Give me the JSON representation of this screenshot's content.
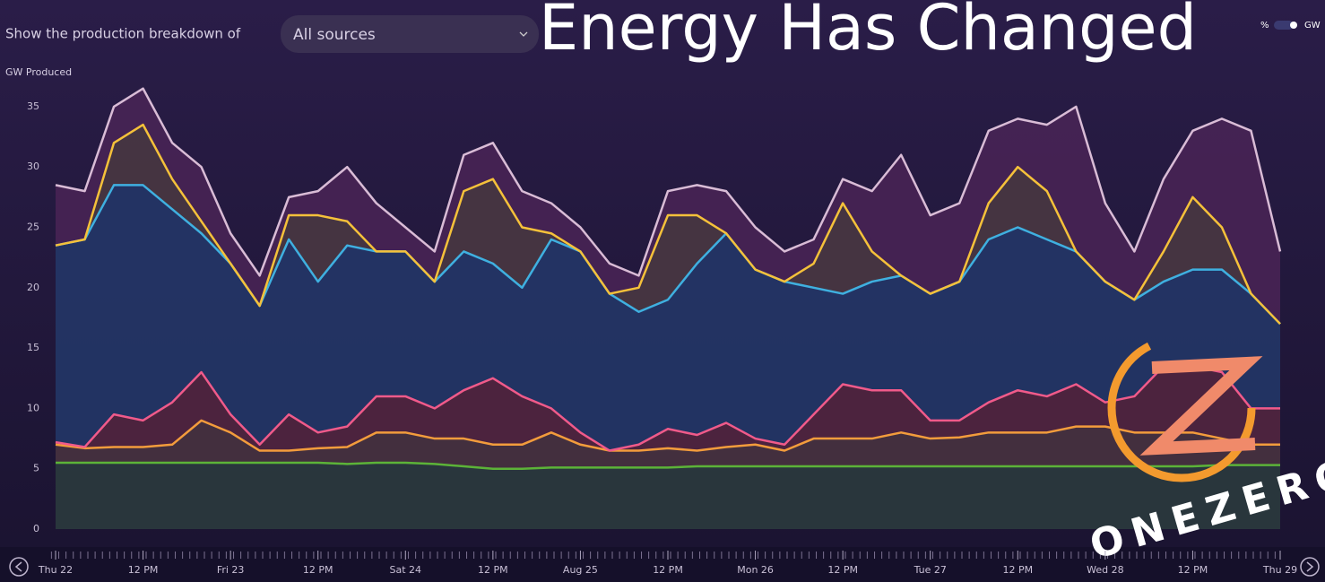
{
  "header": {
    "prompt": "Show the production breakdown of",
    "dropdown": "All sources",
    "headline": "Energy Has Changed",
    "unit_percent": "%",
    "unit_gw": "GW"
  },
  "logo": "ONEZERO",
  "chart_data": {
    "type": "stacked-area",
    "y_label": "GW Produced",
    "x": [
      0,
      4,
      8,
      12,
      16,
      20,
      24,
      28,
      32,
      36,
      40,
      44,
      48,
      52,
      56,
      60,
      64,
      68,
      72,
      76,
      80,
      84,
      88,
      92,
      96,
      100,
      104,
      108,
      112,
      116,
      120,
      124,
      128,
      132,
      136,
      140,
      144,
      148,
      152,
      156,
      160,
      164,
      168
    ],
    "xlim": [
      0,
      168
    ],
    "xticks": [
      {
        "value": 0,
        "label": "Thu 22"
      },
      {
        "value": 12,
        "label": "12 PM"
      },
      {
        "value": 24,
        "label": "Fri 23"
      },
      {
        "value": 36,
        "label": "12 PM"
      },
      {
        "value": 48,
        "label": "Sat 24"
      },
      {
        "value": 60,
        "label": "12 PM"
      },
      {
        "value": 72,
        "label": "Aug 25"
      },
      {
        "value": 84,
        "label": "12 PM"
      },
      {
        "value": 96,
        "label": "Mon 26"
      },
      {
        "value": 108,
        "label": "12 PM"
      },
      {
        "value": 120,
        "label": "Tue 27"
      },
      {
        "value": 132,
        "label": "12 PM"
      },
      {
        "value": 144,
        "label": "Wed 28"
      },
      {
        "value": 156,
        "label": "12 PM"
      },
      {
        "value": 168,
        "label": "Thu 29"
      }
    ],
    "ylim": [
      0,
      37
    ],
    "yticks": [
      0,
      5,
      10,
      15,
      20,
      25,
      30,
      35
    ],
    "grid": false,
    "series": [
      {
        "color": "#5cb338",
        "fill": "#2b3c3e",
        "values": [
          5.5,
          5.5,
          5.5,
          5.5,
          5.5,
          5.5,
          5.5,
          5.5,
          5.5,
          5.5,
          5.4,
          5.5,
          5.5,
          5.4,
          5.2,
          5,
          5,
          5.1,
          5.1,
          5.1,
          5.1,
          5.1,
          5.2,
          5.2,
          5.2,
          5.2,
          5.2,
          5.2,
          5.2,
          5.2,
          5.2,
          5.2,
          5.2,
          5.2,
          5.2,
          5.2,
          5.2,
          5.2,
          5.2,
          5.2,
          5.3,
          5.3,
          5.3
        ]
      },
      {
        "color": "#f39c3c",
        "fill": "#4a3440",
        "values": [
          1.5,
          1.2,
          1.3,
          1.3,
          1.5,
          3.5,
          2.5,
          1,
          1,
          1.2,
          1.4,
          2.5,
          2.5,
          2.1,
          2.3,
          2,
          2,
          2.9,
          1.9,
          1.4,
          1.4,
          1.6,
          1.3,
          1.6,
          1.8,
          1.3,
          2.3,
          2.3,
          2.3,
          2.8,
          2.3,
          2.4,
          2.8,
          2.8,
          2.8,
          3.3,
          3.3,
          2.8,
          2.8,
          2.8,
          2.2,
          1.7,
          1.7
        ]
      },
      {
        "color": "#f05a8a",
        "fill": "#55263f",
        "values": [
          0.2,
          0.1,
          2.7,
          2.2,
          3.5,
          4,
          1.5,
          0.5,
          3,
          1.3,
          1.7,
          3,
          3,
          2.5,
          4,
          5.5,
          4,
          2,
          1,
          0,
          0.5,
          1.6,
          1.3,
          2,
          0.5,
          0.5,
          2,
          4.5,
          4,
          3.5,
          1.5,
          1.4,
          2.5,
          3.5,
          3,
          3.5,
          2,
          3,
          5.5,
          5.5,
          5.5,
          3,
          3
        ]
      },
      {
        "color": "#3fb0e0",
        "fill": "#23386a",
        "values": [
          16.3,
          17.2,
          19,
          19.5,
          16,
          11.5,
          12.5,
          11.5,
          14.5,
          12.5,
          15,
          12,
          12,
          10.5,
          11.5,
          9.5,
          9,
          14,
          15,
          13,
          11,
          10.7,
          14.2,
          15.7,
          14,
          13.5,
          10.5,
          7.5,
          9,
          9.5,
          10.5,
          11.5,
          13.5,
          13.5,
          13,
          11,
          10,
          8,
          7,
          8,
          8.5,
          9.5,
          7
        ]
      },
      {
        "color": "#f5c13a",
        "fill": "#4b3a42",
        "values": [
          0,
          0,
          3.5,
          5,
          2.5,
          1,
          0,
          0,
          2,
          5.5,
          2,
          0,
          0,
          0,
          5,
          7,
          5,
          0.5,
          0,
          0,
          2,
          7,
          4,
          0,
          0,
          0,
          2,
          7.5,
          2.5,
          0,
          0,
          0,
          3,
          5,
          4,
          0,
          0,
          0,
          2.5,
          6,
          3.5,
          0,
          0
        ]
      },
      {
        "color": "#d9bcd6",
        "fill": "#4a2456",
        "values": [
          5,
          4,
          3,
          3,
          3,
          4.5,
          2.5,
          2.5,
          1.5,
          2,
          4.5,
          4,
          2,
          2.5,
          3,
          3,
          3,
          2.5,
          2,
          2.5,
          1,
          2,
          2.5,
          3.5,
          3.5,
          2.5,
          2,
          2,
          5,
          10,
          6.5,
          6.5,
          6,
          4,
          5.5,
          12,
          6.5,
          4,
          6,
          5.5,
          9,
          13.5,
          6
        ]
      }
    ]
  }
}
